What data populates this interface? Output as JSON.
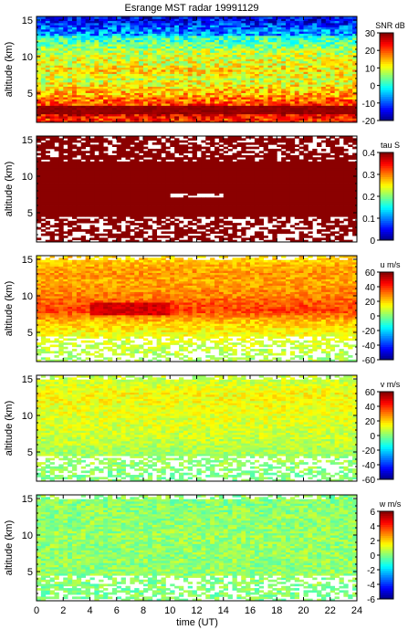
{
  "title": "Esrange MST radar 19991129",
  "x_axis": {
    "label": "time (UT)",
    "range": [
      0,
      24
    ],
    "ticks": [
      0,
      2,
      4,
      6,
      8,
      10,
      12,
      14,
      16,
      18,
      20,
      22,
      24
    ]
  },
  "y_axis_label": "altitude (km)",
  "chart_data": [
    {
      "type": "heatmap",
      "id": "snr",
      "ylabel": "altitude (km)",
      "xlabel": "",
      "xlim": [
        0,
        24
      ],
      "ylim": [
        1,
        15.5
      ],
      "yticks": [
        5,
        10,
        15
      ],
      "colorbar": {
        "label": "SNR dB",
        "range": [
          -20,
          30
        ],
        "ticks": [
          -20,
          -10,
          0,
          10,
          20,
          30
        ]
      },
      "altitude_profile": [
        {
          "alt": 1.5,
          "value": 22
        },
        {
          "alt": 2.5,
          "value": 26
        },
        {
          "alt": 3.0,
          "value": 22
        },
        {
          "alt": 4.0,
          "value": 19
        },
        {
          "alt": 5.0,
          "value": 15
        },
        {
          "alt": 6.0,
          "value": 12
        },
        {
          "alt": 7.0,
          "value": 9
        },
        {
          "alt": 8.0,
          "value": 13
        },
        {
          "alt": 9.0,
          "value": 10
        },
        {
          "alt": 10.0,
          "value": 9
        },
        {
          "alt": 11.0,
          "value": 7
        },
        {
          "alt": 12.0,
          "value": 3
        },
        {
          "alt": 13.0,
          "value": 0
        },
        {
          "alt": 14.0,
          "value": -3
        },
        {
          "alt": 15.0,
          "value": -8
        }
      ],
      "gaps": "none"
    },
    {
      "type": "heatmap",
      "id": "tau",
      "ylabel": "altitude (km)",
      "xlabel": "",
      "xlim": [
        0,
        24
      ],
      "ylim": [
        1,
        15.5
      ],
      "yticks": [
        5,
        10,
        15
      ],
      "colorbar": {
        "label": "tau S",
        "range": [
          0,
          0.4
        ],
        "ticks": [
          0,
          0.1,
          0.2,
          0.3,
          0.4
        ]
      },
      "altitude_profile": [
        {
          "alt": 1.5,
          "value": 0.4
        },
        {
          "alt": 5.0,
          "value": 0.4
        },
        {
          "alt": 10.0,
          "value": 0.4
        },
        {
          "alt": 15.0,
          "value": 0.4
        }
      ],
      "gaps": "white gaps near 0-4 km and 12-15.5 km and a band near 7.5 km"
    },
    {
      "type": "heatmap",
      "id": "u",
      "ylabel": "altitude (km)",
      "xlabel": "",
      "xlim": [
        0,
        24
      ],
      "ylim": [
        1,
        15.5
      ],
      "yticks": [
        5,
        10,
        15
      ],
      "colorbar": {
        "label": "u m/s",
        "range": [
          -60,
          60
        ],
        "ticks": [
          -60,
          -40,
          -20,
          0,
          20,
          40,
          60
        ]
      },
      "altitude_profile": [
        {
          "alt": 1.5,
          "value": 5
        },
        {
          "alt": 3.0,
          "value": 8
        },
        {
          "alt": 5.0,
          "value": 15
        },
        {
          "alt": 6.5,
          "value": 22
        },
        {
          "alt": 8.0,
          "value": 38
        },
        {
          "alt": 9.0,
          "value": 35
        },
        {
          "alt": 10.0,
          "value": 30
        },
        {
          "alt": 11.0,
          "value": 28
        },
        {
          "alt": 12.0,
          "value": 25
        },
        {
          "alt": 13.0,
          "value": 27
        },
        {
          "alt": 14.0,
          "value": 25
        },
        {
          "alt": 15.0,
          "value": 20
        }
      ],
      "gaps": "sparse below 5 km"
    },
    {
      "type": "heatmap",
      "id": "v",
      "ylabel": "altitude (km)",
      "xlabel": "",
      "xlim": [
        0,
        24
      ],
      "ylim": [
        1,
        15.5
      ],
      "yticks": [
        5,
        10,
        15
      ],
      "colorbar": {
        "label": "v m/s",
        "range": [
          -60,
          60
        ],
        "ticks": [
          -60,
          -40,
          -20,
          0,
          20,
          40,
          60
        ]
      },
      "altitude_profile": [
        {
          "alt": 1.5,
          "value": 0
        },
        {
          "alt": 5.0,
          "value": 5
        },
        {
          "alt": 8.0,
          "value": 10
        },
        {
          "alt": 10.0,
          "value": 12
        },
        {
          "alt": 13.0,
          "value": 15
        },
        {
          "alt": 15.0,
          "value": 8
        }
      ],
      "gaps": "sparse below 5 km"
    },
    {
      "type": "heatmap",
      "id": "w",
      "ylabel": "altitude (km)",
      "xlabel": "time (UT)",
      "xlim": [
        0,
        24
      ],
      "ylim": [
        1,
        15.5
      ],
      "yticks": [
        5,
        10,
        15
      ],
      "colorbar": {
        "label": "w m/s",
        "range": [
          -6,
          6
        ],
        "ticks": [
          -6,
          -4,
          -2,
          0,
          2,
          4,
          6
        ]
      },
      "altitude_profile": [
        {
          "alt": 1.5,
          "value": 0
        },
        {
          "alt": 5.0,
          "value": 0.2
        },
        {
          "alt": 10.0,
          "value": 0.3
        },
        {
          "alt": 15.0,
          "value": 0.1
        }
      ],
      "gaps": "sparse below 5 km"
    }
  ]
}
